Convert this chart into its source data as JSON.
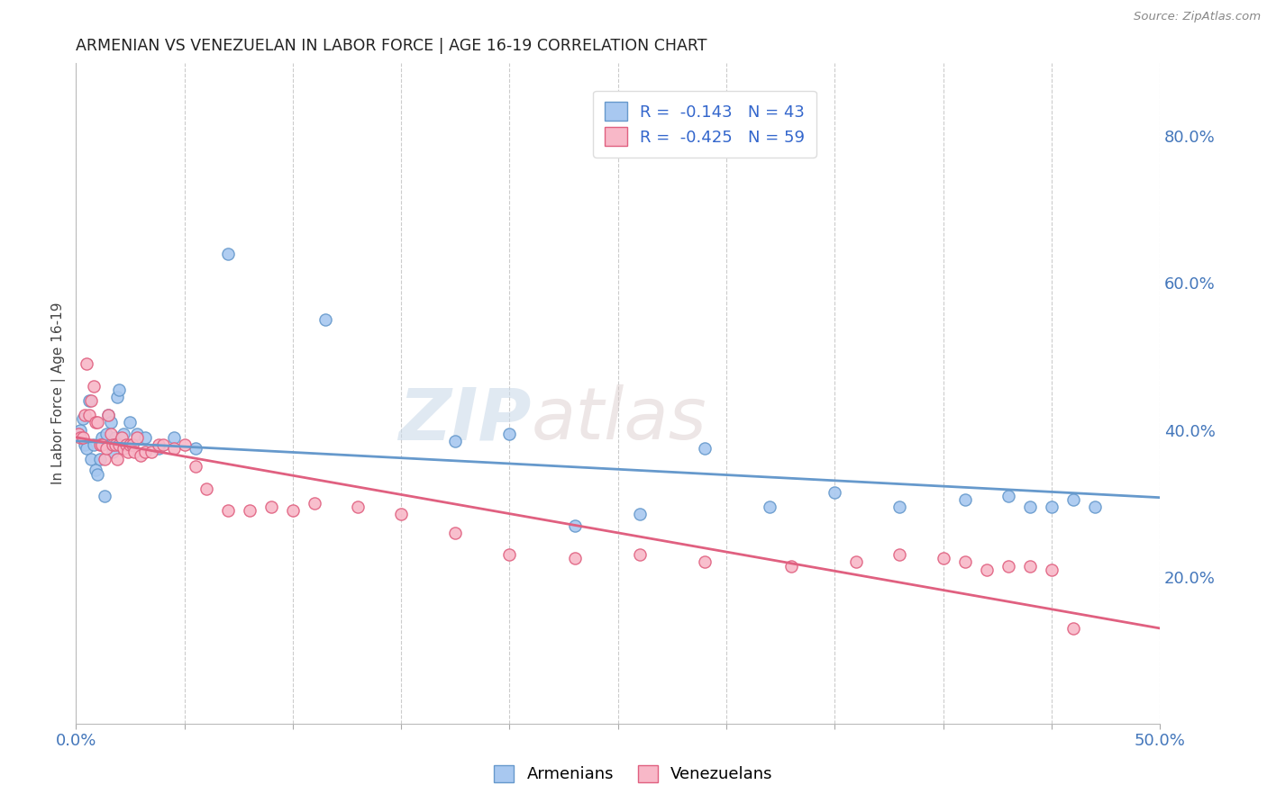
{
  "title": "ARMENIAN VS VENEZUELAN IN LABOR FORCE | AGE 16-19 CORRELATION CHART",
  "source": "Source: ZipAtlas.com",
  "ylabel": "In Labor Force | Age 16-19",
  "xlim": [
    0.0,
    0.5
  ],
  "ylim": [
    0.0,
    0.9
  ],
  "xtick_show": [
    0.0,
    0.5
  ],
  "yticks_right": [
    0.2,
    0.4,
    0.6,
    0.8
  ],
  "legend_r1": "R =  -0.143",
  "legend_n1": "N = 43",
  "legend_r2": "R =  -0.425",
  "legend_n2": "N = 59",
  "armenian_face": "#A8C8F0",
  "armenian_edge": "#6699CC",
  "venezuelan_face": "#F8B8C8",
  "venezuelan_edge": "#E06080",
  "line_armenian": "#6699CC",
  "line_venezuelan": "#E06080",
  "background_color": "#FFFFFF",
  "watermark_zip": "ZIP",
  "watermark_atlas": "atlas",
  "armenians_x": [
    0.001,
    0.002,
    0.003,
    0.004,
    0.005,
    0.006,
    0.007,
    0.008,
    0.009,
    0.01,
    0.011,
    0.012,
    0.013,
    0.014,
    0.015,
    0.016,
    0.017,
    0.018,
    0.019,
    0.02,
    0.022,
    0.025,
    0.028,
    0.032,
    0.038,
    0.045,
    0.055,
    0.07,
    0.115,
    0.175,
    0.2,
    0.23,
    0.26,
    0.29,
    0.32,
    0.35,
    0.38,
    0.41,
    0.43,
    0.44,
    0.45,
    0.46,
    0.47
  ],
  "armenians_y": [
    0.395,
    0.4,
    0.415,
    0.38,
    0.375,
    0.44,
    0.36,
    0.38,
    0.345,
    0.34,
    0.36,
    0.39,
    0.31,
    0.395,
    0.42,
    0.41,
    0.37,
    0.39,
    0.445,
    0.455,
    0.395,
    0.41,
    0.395,
    0.39,
    0.375,
    0.39,
    0.375,
    0.64,
    0.55,
    0.385,
    0.395,
    0.27,
    0.285,
    0.375,
    0.295,
    0.315,
    0.295,
    0.305,
    0.31,
    0.295,
    0.295,
    0.305,
    0.295
  ],
  "venezuelans_x": [
    0.001,
    0.002,
    0.003,
    0.004,
    0.005,
    0.006,
    0.007,
    0.008,
    0.009,
    0.01,
    0.011,
    0.012,
    0.013,
    0.014,
    0.015,
    0.016,
    0.017,
    0.018,
    0.019,
    0.02,
    0.021,
    0.022,
    0.023,
    0.024,
    0.025,
    0.026,
    0.027,
    0.028,
    0.03,
    0.032,
    0.035,
    0.038,
    0.04,
    0.045,
    0.05,
    0.055,
    0.06,
    0.07,
    0.08,
    0.09,
    0.1,
    0.11,
    0.13,
    0.15,
    0.175,
    0.2,
    0.23,
    0.26,
    0.29,
    0.33,
    0.36,
    0.38,
    0.4,
    0.41,
    0.42,
    0.43,
    0.44,
    0.45,
    0.46
  ],
  "venezuelans_y": [
    0.395,
    0.39,
    0.39,
    0.42,
    0.49,
    0.42,
    0.44,
    0.46,
    0.41,
    0.41,
    0.38,
    0.38,
    0.36,
    0.375,
    0.42,
    0.395,
    0.38,
    0.38,
    0.36,
    0.38,
    0.39,
    0.375,
    0.38,
    0.37,
    0.38,
    0.38,
    0.37,
    0.39,
    0.365,
    0.37,
    0.37,
    0.38,
    0.38,
    0.375,
    0.38,
    0.35,
    0.32,
    0.29,
    0.29,
    0.295,
    0.29,
    0.3,
    0.295,
    0.285,
    0.26,
    0.23,
    0.225,
    0.23,
    0.22,
    0.215,
    0.22,
    0.23,
    0.225,
    0.22,
    0.21,
    0.215,
    0.215,
    0.21,
    0.13
  ]
}
